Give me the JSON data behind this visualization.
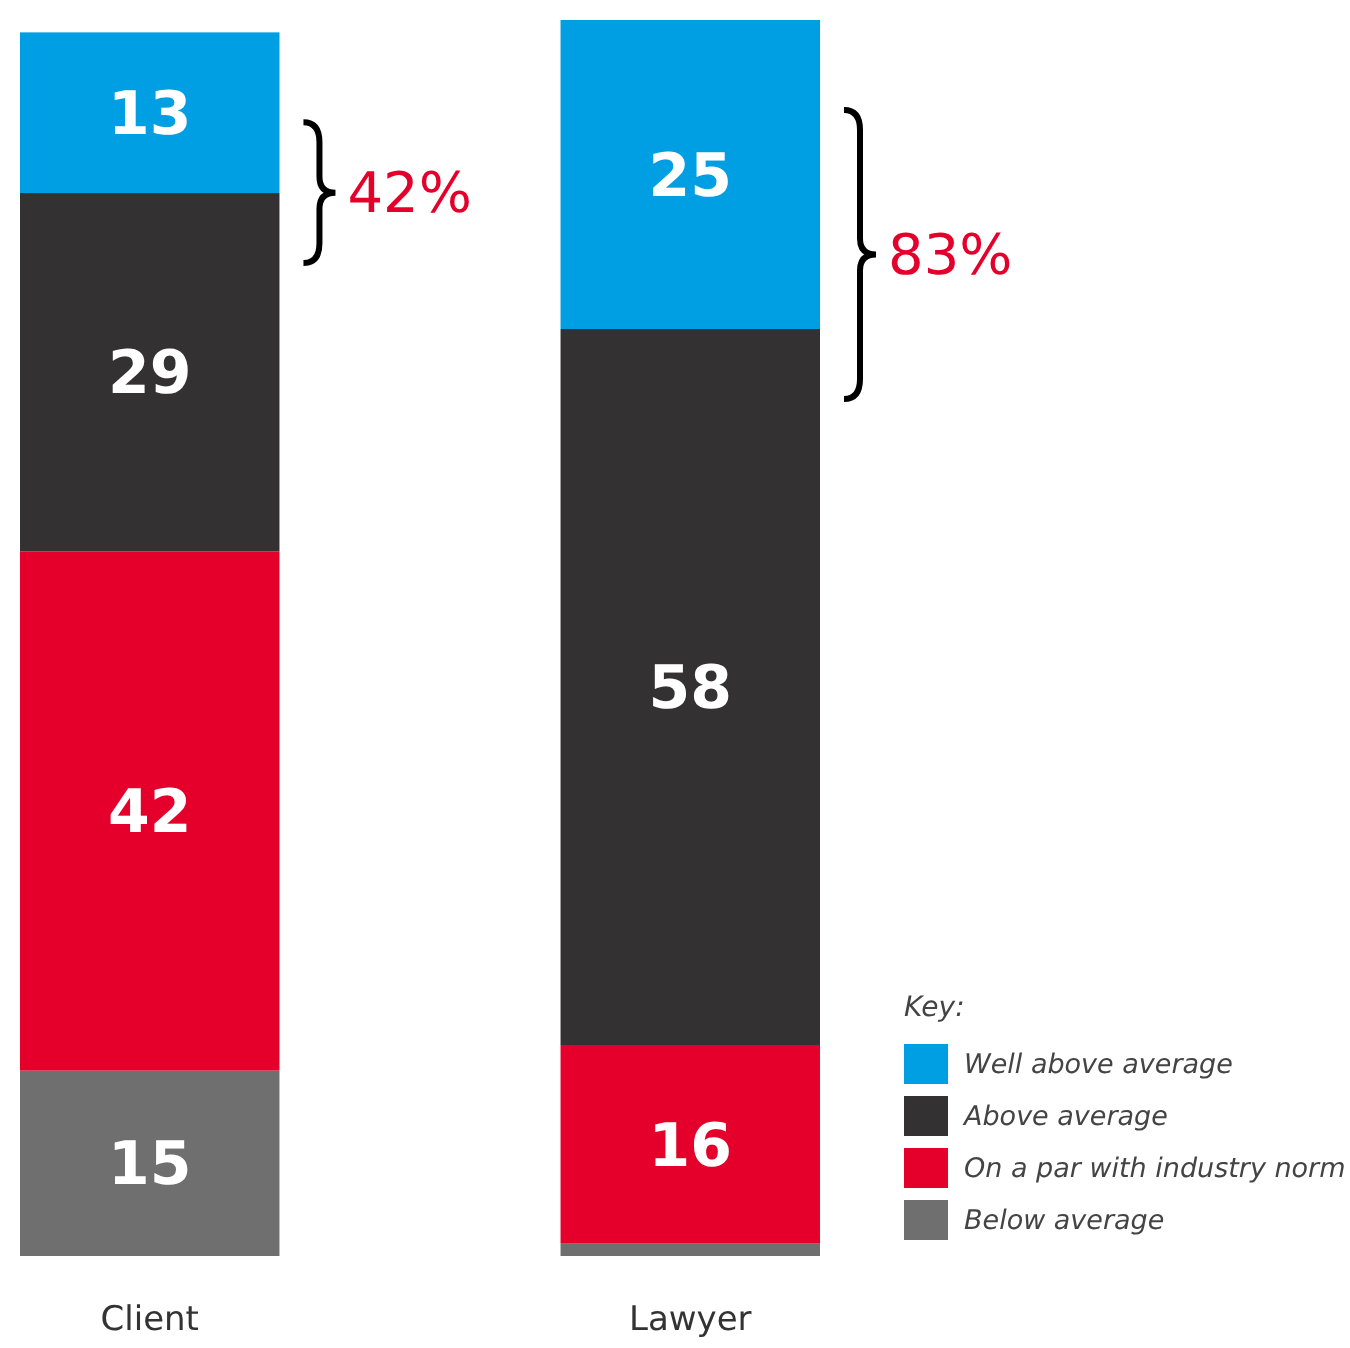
{
  "chart_data": {
    "type": "bar",
    "stacked": true,
    "categories": [
      "Client",
      "Lawyer"
    ],
    "series": [
      {
        "name": "Below average",
        "color": "#6f6f6f",
        "values": [
          15,
          1
        ],
        "value_labels": [
          "15",
          null
        ]
      },
      {
        "name": "On a par with industry norm",
        "color": "#e4002b",
        "values": [
          42,
          16
        ]
      },
      {
        "name": "Above average",
        "color": "#333132",
        "values": [
          29,
          58
        ]
      },
      {
        "name": "Well above average",
        "color": "#009fe3",
        "values": [
          13,
          25
        ]
      }
    ],
    "data_labels": true,
    "legend": "bottom right",
    "legend_title": "Key:",
    "annotations": [
      "42%",
      "83%"
    ]
  }
}
